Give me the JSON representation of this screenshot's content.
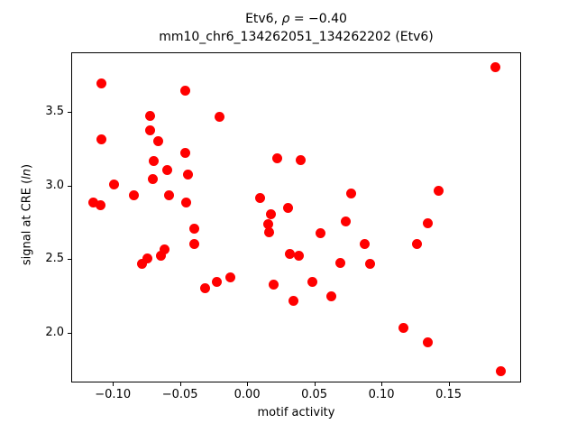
{
  "figure": {
    "title_line1": {
      "prefix": "Etv6, ",
      "rho": "ρ",
      "suffix": " = −0.40"
    },
    "title_line2": "mm10_chr6_134262051_134262202 (Etv6)",
    "xlabel": "motif activity",
    "ylabel": {
      "prefix": "signal at CRE (",
      "italic": "ln",
      "suffix": ")"
    }
  },
  "chart_data": {
    "type": "scatter",
    "title": "Etv6, ρ = −0.40",
    "subtitle": "mm10_chr6_134262051_134262202 (Etv6)",
    "xlabel": "motif activity",
    "ylabel": "signal at CRE (ln)",
    "xlim": [
      -0.131,
      0.204
    ],
    "ylim": [
      1.66,
      3.905
    ],
    "xticks": [
      -0.1,
      -0.05,
      0.0,
      0.05,
      0.1,
      0.15
    ],
    "yticks": [
      2.0,
      2.5,
      3.0,
      3.5
    ],
    "grid": false,
    "legend": false,
    "marker_color": "#ff0000",
    "marker_diameter_px": 11,
    "points": [
      [
        -0.109,
        3.7
      ],
      [
        -0.047,
        3.65
      ],
      [
        -0.073,
        3.48
      ],
      [
        -0.021,
        3.47
      ],
      [
        -0.073,
        3.38
      ],
      [
        -0.109,
        3.32
      ],
      [
        -0.067,
        3.31
      ],
      [
        -0.047,
        3.23
      ],
      [
        -0.07,
        3.17
      ],
      [
        0.022,
        3.19
      ],
      [
        0.039,
        3.18
      ],
      [
        -0.06,
        3.11
      ],
      [
        -0.045,
        3.08
      ],
      [
        -0.071,
        3.05
      ],
      [
        -0.1,
        3.01
      ],
      [
        -0.085,
        2.94
      ],
      [
        -0.059,
        2.94
      ],
      [
        -0.115,
        2.89
      ],
      [
        -0.11,
        2.87
      ],
      [
        -0.046,
        2.89
      ],
      [
        0.009,
        2.92
      ],
      [
        0.077,
        2.95
      ],
      [
        0.142,
        2.97
      ],
      [
        0.184,
        3.81
      ],
      [
        0.03,
        2.85
      ],
      [
        0.017,
        2.81
      ],
      [
        0.015,
        2.74
      ],
      [
        0.016,
        2.69
      ],
      [
        -0.04,
        2.71
      ],
      [
        -0.04,
        2.61
      ],
      [
        0.073,
        2.76
      ],
      [
        0.134,
        2.75
      ],
      [
        0.054,
        2.68
      ],
      [
        0.087,
        2.61
      ],
      [
        0.126,
        2.61
      ],
      [
        -0.079,
        2.47
      ],
      [
        -0.075,
        2.51
      ],
      [
        -0.065,
        2.53
      ],
      [
        -0.062,
        2.57
      ],
      [
        0.031,
        2.54
      ],
      [
        0.038,
        2.53
      ],
      [
        0.069,
        2.48
      ],
      [
        0.091,
        2.47
      ],
      [
        -0.032,
        2.31
      ],
      [
        -0.023,
        2.35
      ],
      [
        -0.013,
        2.38
      ],
      [
        0.019,
        2.33
      ],
      [
        0.048,
        2.35
      ],
      [
        0.034,
        2.22
      ],
      [
        0.062,
        2.25
      ],
      [
        0.116,
        2.04
      ],
      [
        0.134,
        1.94
      ],
      [
        0.188,
        1.74
      ]
    ]
  }
}
